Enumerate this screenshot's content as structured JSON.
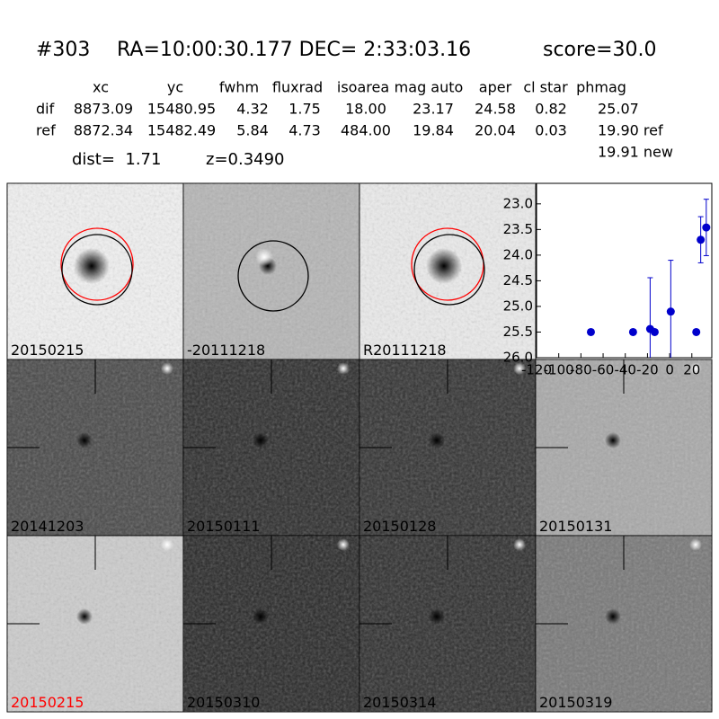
{
  "header": {
    "id": "#303",
    "coords": "RA=10:00:30.177 DEC= 2:33:03.16",
    "score": "score=30.0"
  },
  "table": {
    "columns": [
      "xc",
      "yc",
      "fwhm",
      "fluxrad",
      "isoarea",
      "mag auto",
      "aper",
      "cl star",
      "phmag"
    ],
    "rows": [
      {
        "label": "dif",
        "cells": [
          "8873.09",
          "15480.95",
          "4.32",
          "1.75",
          "18.00",
          "23.17",
          "24.58",
          "0.82",
          "25.07"
        ]
      },
      {
        "label": "ref",
        "cells": [
          "8872.34",
          "15482.49",
          "5.84",
          "4.73",
          "484.00",
          "19.84",
          "20.04",
          "0.03",
          "19.90 ref"
        ]
      }
    ],
    "extra": "19.91 new"
  },
  "dist": "dist=  1.71",
  "redshift": "z=0.3490",
  "stamps": [
    {
      "label": "20150215"
    },
    {
      "label": "-20111218"
    },
    {
      "label": "R20111218"
    },
    {
      "label": "20141203"
    },
    {
      "label": "20150111"
    },
    {
      "label": "20150128"
    },
    {
      "label": "20150131"
    },
    {
      "label": "20150215",
      "color": "#ff0000"
    },
    {
      "label": "20150310"
    },
    {
      "label": "20150314"
    },
    {
      "label": "20150319"
    }
  ],
  "chart_data": {
    "type": "scatter",
    "color": "#0000cc",
    "x": [
      -71,
      -33,
      -17.6,
      -13.5,
      1,
      24,
      28,
      33
    ],
    "values": [
      25.5,
      25.5,
      25.44,
      25.5,
      25.1,
      25.5,
      23.7,
      23.46
    ],
    "errors": [
      null,
      null,
      1.0,
      null,
      1.0,
      null,
      0.45,
      0.55
    ],
    "xlim": [
      -120,
      38
    ],
    "ylim": [
      26.0,
      22.6
    ],
    "xticks": [
      -120,
      -100,
      -80,
      -60,
      -40,
      -20,
      0,
      20
    ],
    "yticks": [
      {
        "value": 23,
        "label": "23.0"
      },
      {
        "value": 23.5,
        "label": "23.5"
      },
      {
        "value": 24,
        "label": "24.0"
      },
      {
        "value": 24.5,
        "label": "24.5"
      },
      {
        "value": 25,
        "label": "25.0"
      },
      {
        "value": 25.5,
        "label": "25.5"
      },
      {
        "value": 26,
        "label": "26.0"
      }
    ]
  }
}
